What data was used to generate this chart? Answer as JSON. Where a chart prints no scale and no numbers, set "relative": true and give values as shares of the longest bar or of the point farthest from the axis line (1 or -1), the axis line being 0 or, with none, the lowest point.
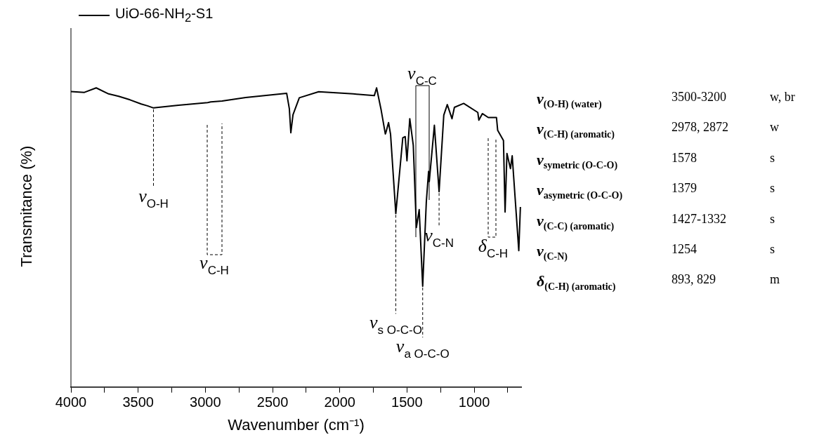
{
  "chart_data": {
    "type": "line",
    "relative": true,
    "xlabel": "Wavenumber (cm⁻¹)",
    "ylabel": "Transmitance (%)",
    "legend": "top left",
    "marker": "none",
    "line_style": "solid",
    "xlim": [
      4000,
      650
    ],
    "xticks": [
      4000,
      {
        "value": 3750,
        "label": null
      },
      3500,
      {
        "value": 3250,
        "label": null
      },
      3000,
      {
        "value": 2750,
        "label": null
      },
      2500,
      {
        "value": 2250,
        "label": null
      },
      2000,
      {
        "value": 1750,
        "label": null
      },
      1500,
      {
        "value": 1250,
        "label": null
      },
      1000,
      {
        "value": 750,
        "label": null
      }
    ],
    "series": [
      {
        "name": "UiO-66-NH$_{2}$-S1",
        "color": "#000000",
        "x": [
          4000,
          3900,
          3812,
          3720,
          3645,
          3560,
          3477,
          3430,
          3386,
          3200,
          2983,
          2960,
          2876,
          2700,
          2395,
          2375,
          2364,
          2348,
          2301,
          2157,
          1900,
          1743,
          1726,
          1692,
          1661,
          1658,
          1643,
          1637,
          1622,
          1583,
          1531,
          1513,
          1500,
          1479,
          1453,
          1430,
          1409,
          1383,
          1356,
          1339,
          1334,
          1296,
          1261,
          1226,
          1200,
          1165,
          1147,
          1078,
          973,
          965,
          939,
          895,
          834,
          825,
          782,
          770,
          756,
          730,
          717,
          668,
          656
        ],
        "values": [
          0.988,
          0.985,
          1,
          0.98,
          0.972,
          0.96,
          0.946,
          0.94,
          0.933,
          0.942,
          0.951,
          0.953,
          0.956,
          0.968,
          0.982,
          0.93,
          0.85,
          0.91,
          0.967,
          0.987,
          0.98,
          0.974,
          1,
          0.926,
          0.846,
          0.849,
          0.874,
          0.884,
          0.845,
          0.58,
          0.833,
          0.837,
          0.756,
          0.897,
          0.808,
          0.533,
          0.593,
          0.337,
          0.619,
          0.721,
          0.687,
          0.875,
          0.653,
          0.909,
          0.944,
          0.897,
          0.935,
          0.948,
          0.918,
          0.892,
          0.914,
          0.901,
          0.901,
          0.858,
          0.824,
          0.585,
          0.781,
          0.73,
          0.773,
          0.456,
          0.602
        ]
      }
    ],
    "annotations": [
      {
        "text": "ν$_{O-H}$",
        "x": 3386,
        "y": 0.933
      },
      {
        "text": "ν$_{s O-C-O}$",
        "x": 1583,
        "y": 0.58
      },
      {
        "text": "ν$_{a O-C-O}$",
        "x": 1383,
        "y": 0.337
      },
      {
        "text": "ν$_{C-N}$",
        "x": 1261,
        "y": 0.653
      },
      "ν$_{C-H}$",
      "ν$_{C-C}$",
      "δ$_{C-H}$",
      "ν$_{(O-H) (water)}$",
      "3500-3200",
      "w, br",
      "ν$_{(C-H) (aromatic)}$",
      "2978, 2872",
      "w",
      "ν$_{symetric (O-C-O)}$",
      "1578",
      "s",
      "ν$_{asymetric (O-C-O)}$",
      "1379",
      "s",
      "ν$_{(C-C) (aromatic)}$",
      "1427-1332",
      "s",
      "ν$_{(C-N)}$",
      "1254",
      "s",
      "δ$_{(C-H) (aromatic)}$",
      "893, 829",
      "m"
    ]
  }
}
